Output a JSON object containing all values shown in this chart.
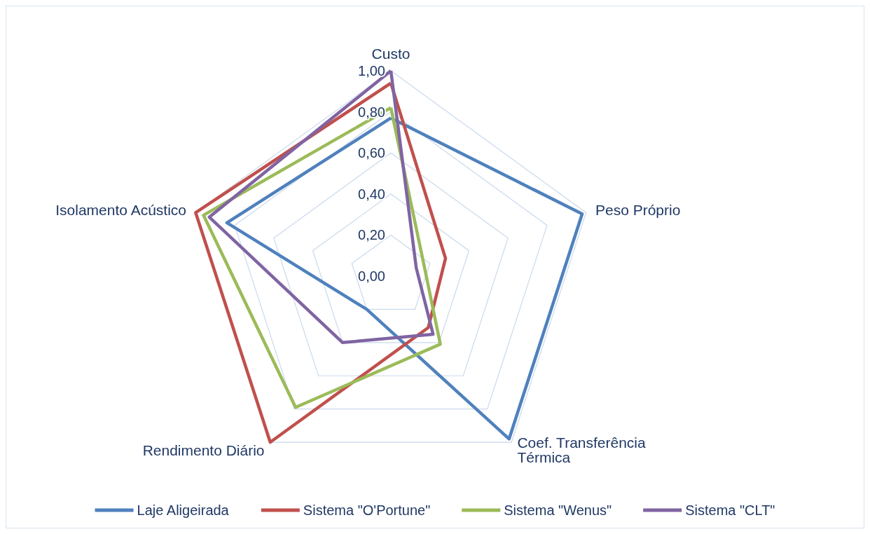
{
  "chart_data": {
    "type": "radar",
    "categories": [
      "Custo",
      "Peso Próprio",
      "Coef. Transferência Térmica",
      "Rendimento Diário",
      "Isolamento Acústico"
    ],
    "series": [
      {
        "name": "Laje Aligeirada",
        "color": "#4f81bd",
        "values": [
          0.77,
          0.98,
          0.98,
          0.2,
          0.84
        ]
      },
      {
        "name": "Sistema \"O'Portune\"",
        "color": "#c0504d",
        "values": [
          0.94,
          0.28,
          0.31,
          1.0,
          1.0
        ]
      },
      {
        "name": "Sistema \"Wenus\"",
        "color": "#9bbb59",
        "values": [
          0.82,
          0.17,
          0.41,
          0.79,
          0.96
        ]
      },
      {
        "name": "Sistema \"CLT\"",
        "color": "#8064a2",
        "values": [
          1.0,
          0.13,
          0.35,
          0.4,
          0.93
        ]
      }
    ],
    "ylim": [
      0,
      1
    ],
    "yticks": [
      {
        "value": 0,
        "label": "0,00"
      },
      {
        "value": 0.2,
        "label": "0,20"
      },
      {
        "value": 0.4,
        "label": "0,40"
      },
      {
        "value": 0.6,
        "label": "0,60"
      },
      {
        "value": 0.8,
        "label": "0,80"
      },
      {
        "value": 1,
        "label": "1,00"
      }
    ],
    "grid": true,
    "legend": "bottom",
    "marker": "none",
    "line_style": "solid"
  }
}
